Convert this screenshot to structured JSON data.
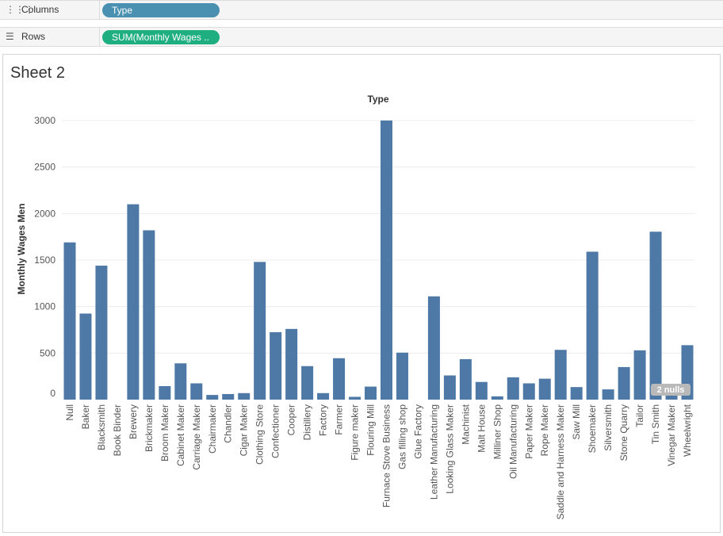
{
  "shelves": {
    "columns": {
      "label": "Columns",
      "icon": "columns-icon",
      "pill": "Type"
    },
    "rows": {
      "label": "Rows",
      "icon": "rows-icon",
      "pill": "SUM(Monthly Wages .."
    }
  },
  "sheet": {
    "title": "Sheet 2"
  },
  "colors": {
    "bar": "#4e79a7",
    "columns_pill": "#4a90b0",
    "rows_pill": "#1fae7f",
    "null_badge": "#b9b9b9"
  },
  "null_indicator": "2 nulls",
  "chart_data": {
    "type": "bar",
    "title": "Type",
    "xlabel": "",
    "ylabel": "Monthly Wages Men",
    "ylim": [
      0,
      3000
    ],
    "yticks": [
      "0",
      "500",
      "1000",
      "1500",
      "2000",
      "2500",
      "3000"
    ],
    "grid": true,
    "categories": [
      "Null",
      "Baker",
      "Blacksmith",
      "Book Binder",
      "Brewery",
      "Brickmaker",
      "Broom Maker",
      "Cabinet Maker",
      "Carriage Maker",
      "Chairmaker",
      "Chandler",
      "Cigar Maker",
      "Clothing Store",
      "Confectioner",
      "Cooper",
      "Distillery",
      "Factory",
      "Farmer",
      "Figure maker",
      "Flouring Mill",
      "Furnace Stove Business",
      "Gas filling shop",
      "Glue Factory",
      "Leather Manufacturing",
      "Looking Glass Maker",
      "Machinist",
      "Malt House",
      "Milliner Shop",
      "Oil Manufacturing",
      "Paper Maker",
      "Rope Maker",
      "Saddle and Harness Maker",
      "Saw Mill",
      "Shoemaker",
      "Silversmith",
      "Stone Quarry",
      "Tailor",
      "Tin Smith",
      "Vinegar Maker",
      "Wheelwright"
    ],
    "values": [
      1690,
      925,
      1440,
      null,
      2100,
      1820,
      145,
      390,
      175,
      50,
      60,
      70,
      1480,
      725,
      760,
      360,
      70,
      445,
      30,
      140,
      3000,
      505,
      null,
      1110,
      260,
      435,
      190,
      35,
      240,
      175,
      225,
      535,
      135,
      1590,
      110,
      350,
      530,
      1805,
      55,
      585
    ]
  }
}
